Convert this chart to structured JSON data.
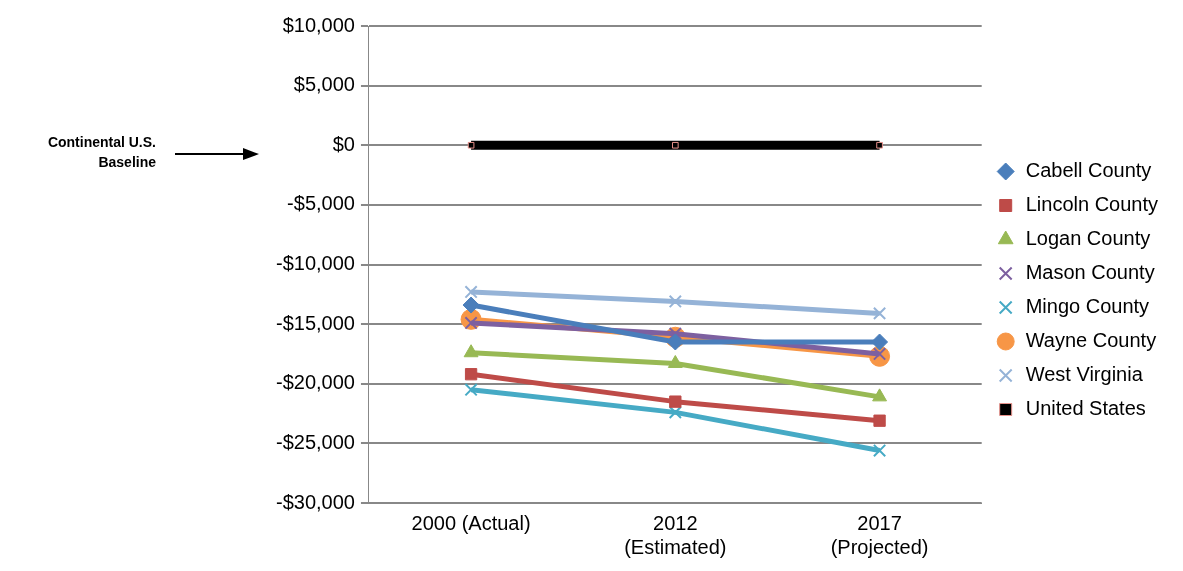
{
  "chart_data": {
    "type": "line",
    "categories": [
      "2000 (Actual)",
      "2012 (Estimated)",
      "2017 (Projected)"
    ],
    "series": [
      {
        "name": "Cabell County",
        "color": "#4a7ebb",
        "marker": "diamond",
        "values": [
          -13400,
          -16500,
          -16500
        ]
      },
      {
        "name": "Lincoln County",
        "color": "#be4b48",
        "marker": "square",
        "values": [
          -19200,
          -21500,
          -23100
        ]
      },
      {
        "name": "Logan County",
        "color": "#98b954",
        "marker": "triangle",
        "values": [
          -17400,
          -18300,
          -21100
        ]
      },
      {
        "name": "Mason County",
        "color": "#7d60a0",
        "marker": "cross",
        "values": [
          -14900,
          -15800,
          -17500
        ]
      },
      {
        "name": "Mingo County",
        "color": "#46aac5",
        "marker": "cross",
        "values": [
          -20500,
          -22400,
          -25600
        ]
      },
      {
        "name": "Wayne County",
        "color": "#f79646",
        "marker": "circle",
        "values": [
          -14600,
          -16100,
          -17700
        ]
      },
      {
        "name": "West Virginia",
        "color": "#95b3d7",
        "marker": "cross",
        "values": [
          -12300,
          -13100,
          -14100
        ]
      },
      {
        "name": "United States",
        "color": "#000000",
        "marker": "square",
        "values": [
          0,
          0,
          0
        ]
      }
    ],
    "ylim": [
      -30000,
      10000
    ],
    "yticks": [
      {
        "value": -30000,
        "label": "-$30,000"
      },
      {
        "value": -25000,
        "label": "-$25,000"
      },
      {
        "value": -20000,
        "label": "-$20,000"
      },
      {
        "value": -15000,
        "label": "-$15,000"
      },
      {
        "value": -10000,
        "label": "-$10,000"
      },
      {
        "value": -5000,
        "label": "-$5,000"
      },
      {
        "value": 0,
        "label": "$0"
      },
      {
        "value": 5000,
        "label": "$5,000"
      },
      {
        "value": 10000,
        "label": "$10,000"
      }
    ],
    "grid": "y",
    "legend": "right",
    "annotations": [
      "Continental U.S. Baseline"
    ]
  }
}
